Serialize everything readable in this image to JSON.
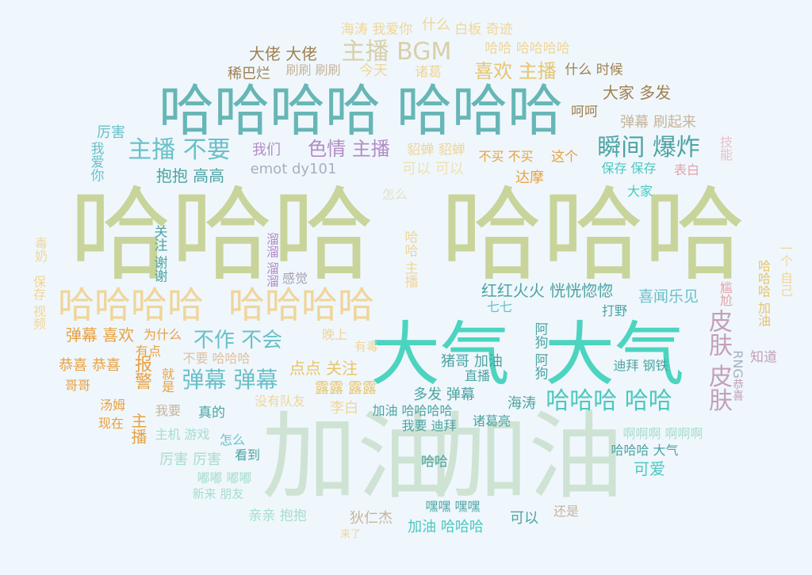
{
  "word_cloud": {
    "background": "#eff7fc",
    "palette": [
      "#c8d49a",
      "#cfe3d4",
      "#4cd4c0",
      "#67b6b6",
      "#f0d59a",
      "#4ea3a3",
      "#e9c46a",
      "#b48ac6",
      "#a7dccf",
      "#e8a0a8",
      "#c7b49a"
    ],
    "words": [
      {
        "text": "哈哈哈",
        "color": "#c8d49a"
      },
      {
        "text": "哈哈哈",
        "color": "#c8d49a"
      },
      {
        "text": "加油",
        "color": "#cfe3d4"
      },
      {
        "text": "加油",
        "color": "#cfe3d4"
      },
      {
        "text": "大气",
        "color": "#4cd4c0"
      },
      {
        "text": "大气",
        "color": "#4cd4c0"
      },
      {
        "text": "哈哈哈哈",
        "color": "#67b6b6"
      },
      {
        "text": "哈哈哈",
        "color": "#67b6b6"
      },
      {
        "text": "哈哈哈哈",
        "color": "#f0d59a"
      },
      {
        "text": "哈哈哈哈",
        "color": "#f0d59a"
      },
      {
        "text": "主播 BGM",
        "color": "#d9cfa8"
      },
      {
        "text": "主播 不要",
        "color": "#6ac0c8"
      },
      {
        "text": "瞬间 爆炸",
        "color": "#4ea3a3"
      },
      {
        "text": "色情 主播",
        "color": "#b48ac6"
      },
      {
        "text": "哈哈哈 哈哈",
        "color": "#4cc8c0"
      },
      {
        "text": "皮肤 皮肤",
        "color": "#c4a0b8"
      },
      {
        "text": "弹幕 弹幕",
        "color": "#6ac0c8"
      },
      {
        "text": "不作 不会",
        "color": "#6ac0c8"
      },
      {
        "text": "喜欢 主播",
        "color": "#e9c46a"
      },
      {
        "text": "大佬 大佬",
        "color": "#a08050"
      },
      {
        "text": "海涛 我爱你",
        "color": "#f0d59a"
      },
      {
        "text": "什么",
        "color": "#f0d59a"
      },
      {
        "text": "白板 奇迹",
        "color": "#f0d59a"
      },
      {
        "text": "哈哈 哈哈哈哈",
        "color": "#f0d59a"
      },
      {
        "text": "稀巴烂",
        "color": "#a08050"
      },
      {
        "text": "刷刷 刷刷",
        "color": "#c7b49a"
      },
      {
        "text": "今天",
        "color": "#f0d59a"
      },
      {
        "text": "诸葛",
        "color": "#f0d59a"
      },
      {
        "text": "什么 时候",
        "color": "#a08050"
      },
      {
        "text": "大家 多发",
        "color": "#a08050"
      },
      {
        "text": "呵呵",
        "color": "#a08050"
      },
      {
        "text": "弹幕 刷起来",
        "color": "#c7b49a"
      },
      {
        "text": "厉害",
        "color": "#6ac0c8"
      },
      {
        "text": "我爱你",
        "color": "#6ac0c8"
      },
      {
        "text": "我们",
        "color": "#b48ac6"
      },
      {
        "text": "貂蝉 貂蝉",
        "color": "#f0d59a"
      },
      {
        "text": "不买 不买",
        "color": "#e9a040"
      },
      {
        "text": "这个",
        "color": "#e9a040"
      },
      {
        "text": "抱抱 高高",
        "color": "#4ea3a3"
      },
      {
        "text": "emot dy101",
        "color": "#a7b0c0"
      },
      {
        "text": "可以 可以",
        "color": "#f0e0b0"
      },
      {
        "text": "达摩",
        "color": "#e9a040"
      },
      {
        "text": "保存 保存",
        "color": "#4cc8c0"
      },
      {
        "text": "表白",
        "color": "#e8a0a8"
      },
      {
        "text": "技能",
        "color": "#e8c0c8"
      },
      {
        "text": "大家",
        "color": "#4cc8c0"
      },
      {
        "text": "怎么",
        "color": "#e0e0c8"
      },
      {
        "text": "毒奶",
        "color": "#f0d59a"
      },
      {
        "text": "保存 视频",
        "color": "#f0d59a"
      },
      {
        "text": "关注 谢谢",
        "color": "#4ea3a3"
      },
      {
        "text": "溜溜 溜溜",
        "color": "#b48ac6"
      },
      {
        "text": "感觉",
        "color": "#a7a0b0"
      },
      {
        "text": "哈哈 主播",
        "color": "#f0d59a"
      },
      {
        "text": "红红火火 恍恍惚惚",
        "color": "#4ea3a3"
      },
      {
        "text": "七七",
        "color": "#6ac0c8"
      },
      {
        "text": "喜闻乐见",
        "color": "#6ac0c8"
      },
      {
        "text": "尴尬",
        "color": "#e8a0a8"
      },
      {
        "text": "哈哈哈 加油",
        "color": "#e9c46a"
      },
      {
        "text": "一个 自己",
        "color": "#f0d59a"
      },
      {
        "text": "打野",
        "color": "#4ea3a3"
      },
      {
        "text": "阿狗 阿狗",
        "color": "#4ea3a3"
      },
      {
        "text": "RNG",
        "color": "#a7b0c0"
      },
      {
        "text": "恭喜",
        "color": "#c4a0b8"
      },
      {
        "text": "知道",
        "color": "#c4a0b8"
      },
      {
        "text": "弹幕 喜欢",
        "color": "#e9a040"
      },
      {
        "text": "为什么",
        "color": "#e9a040"
      },
      {
        "text": "有点",
        "color": "#e9a040"
      },
      {
        "text": "晚上",
        "color": "#f0d59a"
      },
      {
        "text": "有毒",
        "color": "#f0d59a"
      },
      {
        "text": "不要 哈哈哈",
        "color": "#e0c0a0"
      },
      {
        "text": "猪哥 加油",
        "color": "#4ea3a3"
      },
      {
        "text": "直播",
        "color": "#4ea3a3"
      },
      {
        "text": "恭喜 恭喜",
        "color": "#e9a040"
      },
      {
        "text": "报警",
        "color": "#e9a040"
      },
      {
        "text": "点点 关注",
        "color": "#e9c46a"
      },
      {
        "text": "迪拜 钢铁",
        "color": "#4ea3a3"
      },
      {
        "text": "哥哥",
        "color": "#e9a040"
      },
      {
        "text": "就是",
        "color": "#e9a040"
      },
      {
        "text": "露露 露露",
        "color": "#e9c46a"
      },
      {
        "text": "多发 弹幕",
        "color": "#4ea3a3"
      },
      {
        "text": "海涛",
        "color": "#4ea3a3"
      },
      {
        "text": "汤姆",
        "color": "#e9a040"
      },
      {
        "text": "主播",
        "color": "#e9a040"
      },
      {
        "text": "我要",
        "color": "#c7b49a"
      },
      {
        "text": "真的",
        "color": "#4ea3a3"
      },
      {
        "text": "没有队友",
        "color": "#f0d59a"
      },
      {
        "text": "李白",
        "color": "#f0d59a"
      },
      {
        "text": "加油 哈哈哈哈",
        "color": "#4ea3a3"
      },
      {
        "text": "诸葛亮",
        "color": "#4ea3a3"
      },
      {
        "text": "现在",
        "color": "#e9a040"
      },
      {
        "text": "主机 游戏",
        "color": "#a7dccf"
      },
      {
        "text": "怎么",
        "color": "#6ac0c8"
      },
      {
        "text": "我要 迪拜",
        "color": "#4ea3a3"
      },
      {
        "text": "啊啊啊 啊啊啊",
        "color": "#a7dccf"
      },
      {
        "text": "哈哈哈 大气",
        "color": "#4ea3a3"
      },
      {
        "text": "厉害 厉害",
        "color": "#a7dccf"
      },
      {
        "text": "看到",
        "color": "#4ea3a3"
      },
      {
        "text": "哈哈",
        "color": "#4ea3a3"
      },
      {
        "text": "可爱",
        "color": "#4cc8c0"
      },
      {
        "text": "嘟嘟 嘟嘟",
        "color": "#a7dccf"
      },
      {
        "text": "新来 朋友",
        "color": "#a7dccf"
      },
      {
        "text": "亲亲 抱抱",
        "color": "#a7dccf"
      },
      {
        "text": "狄仁杰",
        "color": "#c7b49a"
      },
      {
        "text": "嘿嘿 嘿嘿",
        "color": "#4ea3a3"
      },
      {
        "text": "还是",
        "color": "#c7b49a"
      },
      {
        "text": "可以",
        "color": "#4ea3a3"
      },
      {
        "text": "加油 哈哈哈",
        "color": "#4cc8c0"
      },
      {
        "text": "来了",
        "color": "#f0d59a"
      }
    ]
  }
}
